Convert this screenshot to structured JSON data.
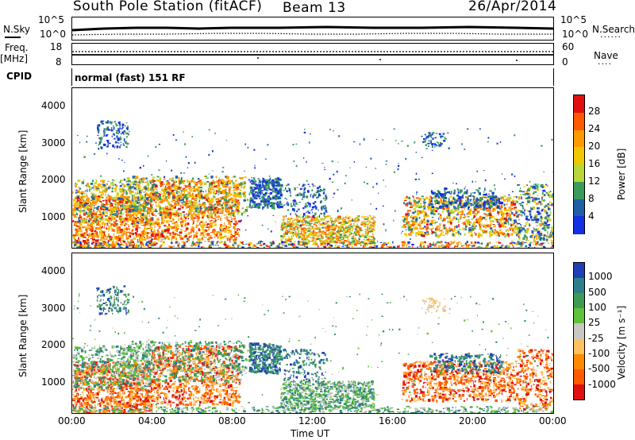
{
  "header": {
    "station": "South Pole Station (fitACF)",
    "beam": "Beam 13",
    "date": "26/Apr/2014"
  },
  "top_panel": {
    "left_label": "N.Sky",
    "right_label": "N.Search",
    "left_ticks": [
      "10^5",
      "10^0"
    ],
    "right_ticks": [
      "10^5",
      "10^0"
    ]
  },
  "freq_panel": {
    "left_label_1": "Freq.",
    "left_label_2": "[MHz]",
    "right_label": "Nave",
    "left_ticks": [
      "18",
      "8"
    ],
    "right_ticks": [
      "60",
      "0"
    ],
    "cpid_label": "CPID",
    "cpid_text": "normal (fast) 151 RF"
  },
  "chart_data": [
    {
      "type": "heatmap",
      "name_shown": "",
      "ylabel": "Slant Range [km]",
      "colorbar_label": "Power [dB]",
      "colorbar_ticks": [
        "28",
        "24",
        "20",
        "16",
        "12",
        "8",
        "4"
      ],
      "colorbar_colors": [
        "#e01010",
        "#ff5a00",
        "#ff9a00",
        "#f0c800",
        "#b8d63a",
        "#3c9a5a",
        "#1f5fa8",
        "#1530e0"
      ],
      "y_ticks": [
        "4000",
        "3000",
        "2000",
        "1000"
      ],
      "ylim": [
        180,
        4500
      ]
    },
    {
      "type": "heatmap",
      "ylabel": "Slant Range [km]",
      "colorbar_label": "Velocity [m s⁻¹]",
      "colorbar_ticks": [
        "1000",
        "500",
        "100",
        "25",
        "-25",
        "-100",
        "-500",
        "-1000"
      ],
      "colorbar_colors": [
        "#1f3fb4",
        "#2e7f8a",
        "#3f9a55",
        "#5fc23a",
        "#c8c8c0",
        "#ffc060",
        "#ff8a00",
        "#ff5a00",
        "#e01010"
      ],
      "y_ticks": [
        "4000",
        "3000",
        "2000",
        "1000"
      ],
      "ylim": [
        180,
        4500
      ]
    }
  ],
  "x_axis": {
    "ticks": [
      "00:00",
      "04:00",
      "08:00",
      "12:00",
      "16:00",
      "20:00",
      "00:00"
    ],
    "label": "Time UT"
  }
}
